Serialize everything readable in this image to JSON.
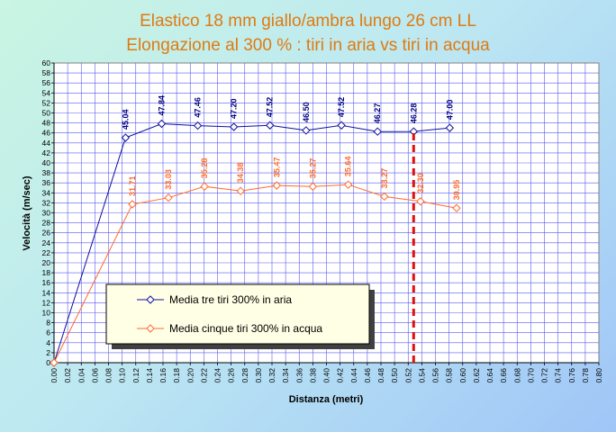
{
  "chart_data": {
    "type": "line",
    "title_line1": "Elastico 18 mm  giallo/ambra lungo 26 cm LL",
    "title_line2": "Elongazione al 300 % : tiri in aria vs tiri in acqua",
    "xlabel": "Distanza (metri)",
    "ylabel": "Velocità (m/sec)",
    "xlim": [
      0,
      0.8
    ],
    "ylim": [
      0,
      60
    ],
    "x_tick_step": 0.02,
    "y_tick_step": 2,
    "x_tick_decimals": 2,
    "grid": true,
    "legend_position": "lower-left",
    "series": [
      {
        "name": "Media tre tiri 300% in aria",
        "color": "#1010a0",
        "label_color": "#000080",
        "x": [
          0,
          0.105,
          0.158,
          0.211,
          0.264,
          0.317,
          0.37,
          0.422,
          0.475,
          0.528,
          0.581
        ],
        "y": [
          0,
          45.04,
          47.84,
          47.46,
          47.2,
          47.52,
          46.5,
          47.52,
          46.27,
          46.28,
          47.0
        ],
        "labels": [
          null,
          "45.04",
          "47.84",
          "47.46",
          "47.20",
          "47.52",
          "46.50",
          "47.52",
          "46.27",
          "46.28",
          "47.00"
        ]
      },
      {
        "name": "Media cinque tiri 300% in acqua",
        "color": "#ff6a2a",
        "label_color": "#ff6a2a",
        "x": [
          0,
          0.115,
          0.168,
          0.221,
          0.274,
          0.327,
          0.38,
          0.432,
          0.485,
          0.538,
          0.591
        ],
        "y": [
          0,
          31.71,
          33.03,
          35.28,
          34.38,
          35.47,
          35.27,
          35.64,
          33.27,
          32.3,
          30.95
        ],
        "labels": [
          null,
          "31.71",
          "33.03",
          "35.28",
          "34.38",
          "35.47",
          "35.27",
          "35.64",
          "33.27",
          "32.30",
          "30.95"
        ]
      }
    ],
    "annotations": [
      {
        "type": "vertical-dashed-line",
        "x": 0.528,
        "color": "#e01010",
        "y_from": 0,
        "y_to": 46.28
      }
    ]
  }
}
